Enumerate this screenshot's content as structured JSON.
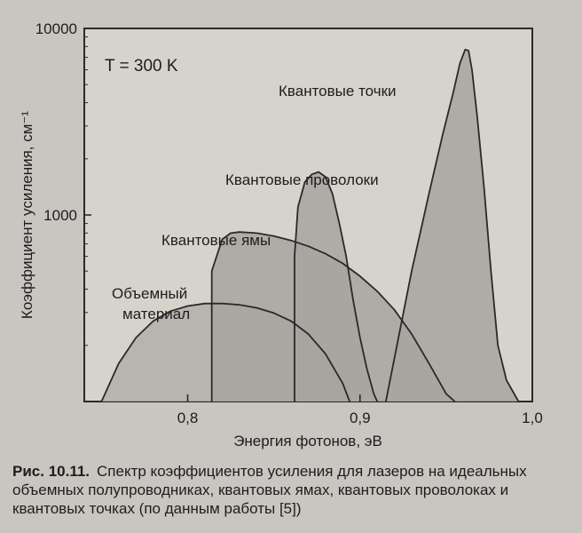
{
  "chart_data": {
    "type": "area",
    "yscale": "log",
    "xlim": [
      0.74,
      1.0
    ],
    "ylim": [
      100,
      10000
    ],
    "xticks": [
      0.8,
      0.9,
      1.0
    ],
    "xtick_labels": [
      "0,8",
      "0,9",
      "1,0"
    ],
    "yticks": [
      1000,
      10000
    ],
    "ytick_labels": [
      "1000",
      "10000"
    ],
    "xlabel": "Энергия фотонов, эВ",
    "ylabel": "Коэффициент усиления, см⁻¹",
    "annotation": "T = 300 K",
    "grid": false,
    "series": [
      {
        "name": "Объемный материал",
        "x": [
          0.75,
          0.76,
          0.77,
          0.78,
          0.79,
          0.8,
          0.81,
          0.82,
          0.83,
          0.84,
          0.85,
          0.86,
          0.87,
          0.88,
          0.89,
          0.894
        ],
        "y": [
          100,
          160,
          220,
          270,
          305,
          325,
          335,
          335,
          330,
          318,
          298,
          270,
          230,
          180,
          125,
          100
        ]
      },
      {
        "name": "Квантовые ямы",
        "x": [
          0.814,
          0.814,
          0.82,
          0.825,
          0.83,
          0.84,
          0.85,
          0.86,
          0.87,
          0.88,
          0.89,
          0.9,
          0.91,
          0.92,
          0.93,
          0.94,
          0.95,
          0.955
        ],
        "y": [
          100,
          500,
          740,
          800,
          810,
          800,
          770,
          730,
          680,
          620,
          550,
          470,
          390,
          310,
          230,
          160,
          110,
          100
        ]
      },
      {
        "name": "Квантовые проволоки",
        "x": [
          0.862,
          0.862,
          0.864,
          0.868,
          0.872,
          0.876,
          0.88,
          0.884,
          0.888,
          0.892,
          0.896,
          0.9,
          0.904,
          0.908,
          0.91
        ],
        "y": [
          100,
          600,
          1100,
          1500,
          1650,
          1700,
          1600,
          1300,
          900,
          600,
          350,
          220,
          150,
          110,
          100
        ]
      },
      {
        "name": "Квантовые точки",
        "x": [
          0.915,
          0.93,
          0.94,
          0.948,
          0.954,
          0.958,
          0.961,
          0.963,
          0.965,
          0.968,
          0.972,
          0.976,
          0.98,
          0.985,
          0.992
        ],
        "y": [
          100,
          500,
          1300,
          2700,
          4500,
          6500,
          7700,
          7600,
          6000,
          3400,
          1400,
          500,
          200,
          130,
          100
        ]
      }
    ]
  },
  "caption": {
    "number": "Рис. 10.11.",
    "text": "Спектр коэффициентов усиления для лазеров на идеальных объемных полупроводниках, квантовых ямах, квантовых проволоках и квантовых точках (по данным работы [5])"
  },
  "colors": {
    "fill": "#a7a4a0",
    "fill_under": "#b2afaa",
    "stroke": "#2a2928",
    "plot_bg": "#d6d3cd",
    "page_bg": "#c9c6c1"
  }
}
